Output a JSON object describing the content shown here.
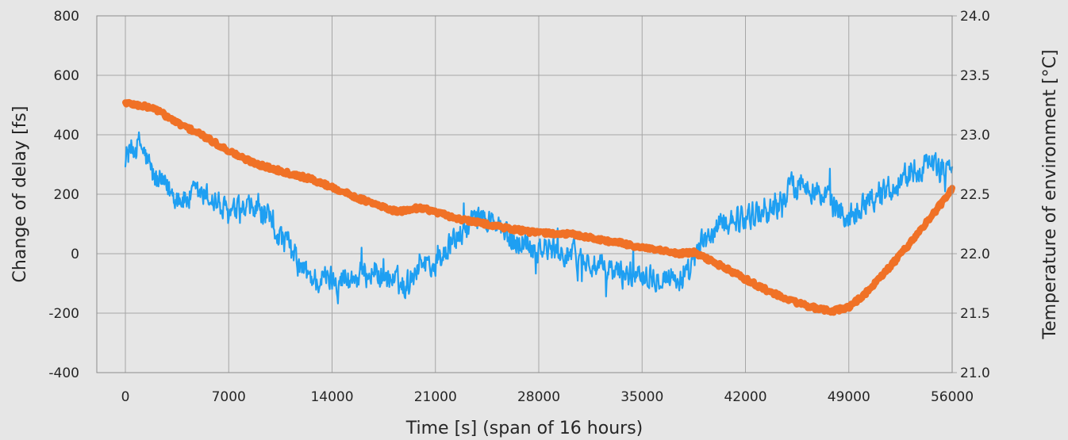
{
  "chart_data": {
    "type": "line",
    "xlabel": "Time [s] (span of 16 hours)",
    "ylabel_left": "Change of delay [fs]",
    "ylabel_right": "Temperature of environment [°C]",
    "xlim": [
      0,
      56000
    ],
    "ylim_left": [
      -400,
      800
    ],
    "ylim_right": [
      21.0,
      24.0
    ],
    "grid": true,
    "legend": "none",
    "x_ticks": [
      "0",
      "7000",
      "14000",
      "21000",
      "28000",
      "35000",
      "42000",
      "49000",
      "56000"
    ],
    "y_left_ticks": [
      "800",
      "600",
      "400",
      "200",
      "0",
      "-200",
      "-400"
    ],
    "y_right_ticks": [
      "24.0",
      "23.5",
      "23.0",
      "22.5",
      "22.0",
      "21.5",
      "21.0"
    ],
    "series": [
      {
        "axis": "left",
        "color": "#1e9ff2",
        "x": [
          0,
          1000,
          2000,
          3000,
          4000,
          5000,
          6000,
          7000,
          8000,
          9000,
          10000,
          11000,
          12000,
          13000,
          14000,
          15000,
          16000,
          17000,
          18000,
          19000,
          20000,
          21000,
          22000,
          23000,
          24000,
          25000,
          26000,
          27000,
          28000,
          29000,
          30000,
          31000,
          32000,
          33000,
          34000,
          35000,
          36000,
          37000,
          38000,
          39000,
          40000,
          41000,
          42000,
          43000,
          44000,
          45000,
          46000,
          47000,
          48000,
          49000,
          50000,
          51000,
          52000,
          53000,
          54000,
          55000,
          56000
        ],
        "values": [
          330,
          370,
          250,
          210,
          180,
          200,
          180,
          130,
          140,
          150,
          90,
          30,
          -60,
          -90,
          -80,
          -90,
          -70,
          -60,
          -90,
          -110,
          -20,
          -40,
          30,
          80,
          130,
          100,
          50,
          40,
          20,
          10,
          0,
          -20,
          -50,
          -60,
          -70,
          -60,
          -70,
          -80,
          -90,
          30,
          80,
          120,
          120,
          140,
          150,
          220,
          250,
          200,
          160,
          120,
          180,
          200,
          230,
          270,
          300,
          280,
          310
        ]
      },
      {
        "axis": "right",
        "color": "#f07126",
        "x": [
          0,
          2000,
          3500,
          5000,
          6500,
          8000,
          9500,
          11000,
          12500,
          14000,
          15500,
          17000,
          18500,
          20000,
          21500,
          23000,
          24500,
          26000,
          27500,
          29000,
          30500,
          32000,
          33500,
          35000,
          36500,
          37500,
          38500,
          40000,
          41500,
          43000,
          44500,
          46000,
          47000,
          48000,
          49000,
          50000,
          51000,
          52000,
          53000,
          54000,
          55000,
          56000
        ],
        "values": [
          23.27,
          23.22,
          23.1,
          23.01,
          22.9,
          22.8,
          22.73,
          22.68,
          22.63,
          22.56,
          22.48,
          22.41,
          22.35,
          22.39,
          22.33,
          22.28,
          22.25,
          22.21,
          22.18,
          22.17,
          22.16,
          22.12,
          22.09,
          22.05,
          22.02,
          22.0,
          22.01,
          21.92,
          21.82,
          21.72,
          21.63,
          21.57,
          21.53,
          21.52,
          21.55,
          21.65,
          21.78,
          21.92,
          22.07,
          22.22,
          22.38,
          22.54
        ]
      }
    ]
  }
}
